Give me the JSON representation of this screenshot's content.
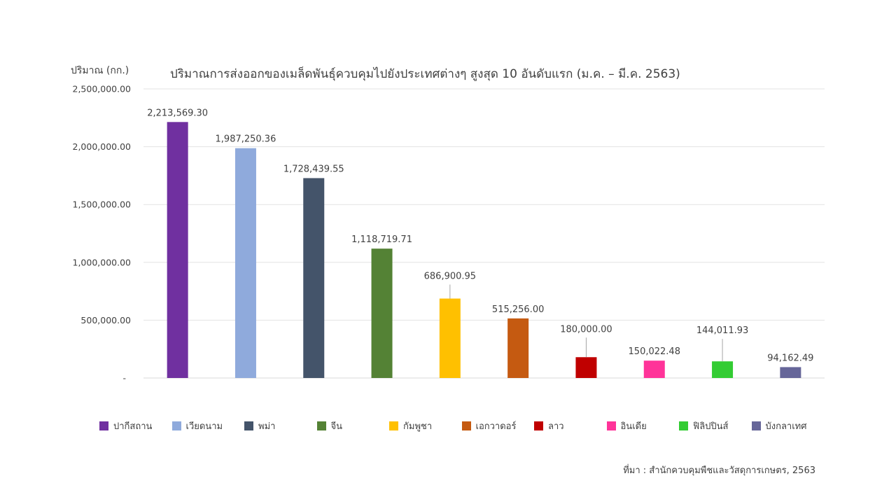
{
  "chart_data": {
    "type": "bar",
    "title": "ปริมาณการส่งออกของเมล็ดพันธุ์ควบคุมไปยังประเทศต่างๆ สูงสุด 10 อันดับแรก (ม.ค. – มี.ค. 2563)",
    "ylabel": "ปริมาณ (กก.)",
    "xlabel": "",
    "ylim": [
      0,
      2500000
    ],
    "yticks": [
      0,
      500000,
      1000000,
      1500000,
      2000000,
      2500000
    ],
    "ytick_labels": [
      "-",
      "500,000.00",
      "1,000,000.00",
      "1,500,000.00",
      "2,000,000.00",
      "2,500,000.00"
    ],
    "grid": true,
    "legend_position": "bottom",
    "series": [
      {
        "name": "ปากีสถาน",
        "value": 2213569.3,
        "label": "2,213,569.30",
        "color": "#7030A0"
      },
      {
        "name": "เวียดนาม",
        "value": 1987250.36,
        "label": "1,987,250.36",
        "color": "#8FAADC"
      },
      {
        "name": "พม่า",
        "value": 1728439.55,
        "label": "1,728,439.55",
        "color": "#44546A"
      },
      {
        "name": "จีน",
        "value": 1118719.71,
        "label": "1,118,719.71",
        "color": "#548235"
      },
      {
        "name": "กัมพูชา",
        "value": 686900.95,
        "label": "686,900.95",
        "color": "#FFC000"
      },
      {
        "name": "เอกวาดอร์",
        "value": 515256.0,
        "label": "515,256.00",
        "color": "#C55A11"
      },
      {
        "name": "ลาว",
        "value": 180000.0,
        "label": "180,000.00",
        "color": "#C00000"
      },
      {
        "name": "อินเดีย",
        "value": 150022.48,
        "label": "150,022.48",
        "color": "#FF3399"
      },
      {
        "name": "ฟิลิปปินส์",
        "value": 144011.93,
        "label": "144,011.93",
        "color": "#33CC33"
      },
      {
        "name": "บังกลาเทศ",
        "value": 94162.49,
        "label": "94,162.49",
        "color": "#666699"
      }
    ]
  },
  "source": "ที่มา : สำนักควบคุมพืชและวัสดุการเกษตร, 2563"
}
